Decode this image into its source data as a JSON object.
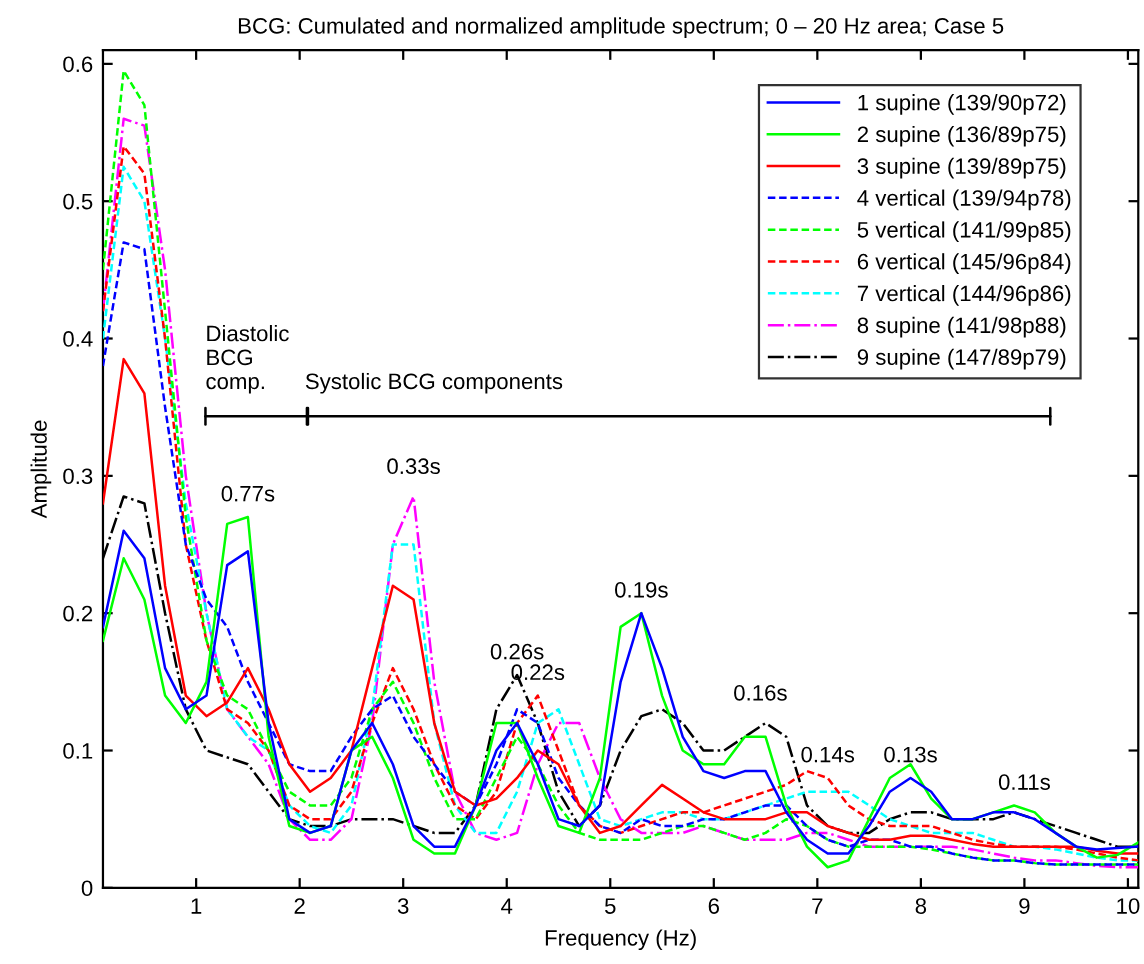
{
  "chart_data": {
    "type": "line",
    "title": "BCG: Cumulated and normalized amplitude spectrum; 0 – 20 Hz area; Case 5",
    "xlabel": "Frequency (Hz)",
    "ylabel": "Amplitude",
    "x": [
      0.1,
      0.3,
      0.5,
      0.7,
      0.9,
      1.1,
      1.3,
      1.5,
      1.7,
      1.9,
      2.1,
      2.3,
      2.5,
      2.7,
      2.9,
      3.1,
      3.3,
      3.5,
      3.7,
      3.9,
      4.1,
      4.3,
      4.5,
      4.7,
      4.9,
      5.1,
      5.3,
      5.5,
      5.7,
      5.9,
      6.1,
      6.3,
      6.5,
      6.7,
      6.9,
      7.1,
      7.3,
      7.5,
      7.7,
      7.9,
      8.1,
      8.3,
      8.5,
      8.7,
      8.9,
      9.1,
      9.3,
      9.5,
      9.7,
      9.9,
      10.1
    ],
    "xlim": [
      0.1,
      10.1
    ],
    "ylim": [
      0,
      0.61
    ],
    "xticks": [
      1,
      2,
      3,
      4,
      5,
      6,
      7,
      8,
      9,
      10
    ],
    "yticks": [
      0,
      0.1,
      0.2,
      0.3,
      0.4,
      0.5,
      0.6
    ],
    "grid": false,
    "legend": "top right",
    "marker": "none",
    "series": [
      {
        "name": "1 supine (139/90p72)",
        "color": "#0000ff",
        "line_style": "solid",
        "values": [
          0.19,
          0.26,
          0.24,
          0.16,
          0.13,
          0.14,
          0.235,
          0.245,
          0.12,
          0.05,
          0.04,
          0.045,
          0.1,
          0.12,
          0.09,
          0.045,
          0.03,
          0.03,
          0.06,
          0.1,
          0.12,
          0.09,
          0.05,
          0.045,
          0.06,
          0.15,
          0.2,
          0.16,
          0.11,
          0.085,
          0.08,
          0.085,
          0.085,
          0.055,
          0.035,
          0.025,
          0.025,
          0.045,
          0.07,
          0.08,
          0.07,
          0.05,
          0.05,
          0.055,
          0.055,
          0.05,
          0.04,
          0.03,
          0.028,
          0.029,
          0.03
        ]
      },
      {
        "name": "2 supine (136/89p75)",
        "color": "#00ff00",
        "line_style": "solid",
        "values": [
          0.18,
          0.24,
          0.21,
          0.14,
          0.12,
          0.15,
          0.265,
          0.27,
          0.11,
          0.045,
          0.04,
          0.045,
          0.1,
          0.11,
          0.08,
          0.035,
          0.025,
          0.025,
          0.06,
          0.12,
          0.12,
          0.08,
          0.045,
          0.04,
          0.08,
          0.19,
          0.2,
          0.14,
          0.1,
          0.09,
          0.09,
          0.11,
          0.11,
          0.06,
          0.03,
          0.015,
          0.02,
          0.05,
          0.08,
          0.09,
          0.065,
          0.05,
          0.05,
          0.055,
          0.06,
          0.055,
          0.04,
          0.03,
          0.022,
          0.024,
          0.033
        ]
      },
      {
        "name": "3 supine (139/89p75)",
        "color": "#ff0000",
        "line_style": "solid",
        "values": [
          0.28,
          0.385,
          0.36,
          0.22,
          0.14,
          0.125,
          0.135,
          0.16,
          0.13,
          0.09,
          0.07,
          0.08,
          0.1,
          0.16,
          0.22,
          0.21,
          0.12,
          0.07,
          0.06,
          0.065,
          0.08,
          0.1,
          0.09,
          0.06,
          0.04,
          0.045,
          0.06,
          0.075,
          0.065,
          0.055,
          0.05,
          0.05,
          0.05,
          0.055,
          0.055,
          0.045,
          0.04,
          0.035,
          0.035,
          0.038,
          0.038,
          0.035,
          0.032,
          0.03,
          0.03,
          0.03,
          0.03,
          0.03,
          0.027,
          0.025,
          0.025
        ]
      },
      {
        "name": "4 vertical (139/94p78)",
        "color": "#0000ff",
        "line_style": "dashed",
        "values": [
          0.38,
          0.47,
          0.465,
          0.35,
          0.25,
          0.21,
          0.19,
          0.15,
          0.12,
          0.09,
          0.085,
          0.085,
          0.11,
          0.13,
          0.14,
          0.11,
          0.09,
          0.07,
          0.06,
          0.09,
          0.13,
          0.12,
          0.08,
          0.06,
          0.045,
          0.04,
          0.05,
          0.045,
          0.045,
          0.05,
          0.05,
          0.055,
          0.06,
          0.06,
          0.045,
          0.035,
          0.03,
          0.035,
          0.035,
          0.03,
          0.03,
          0.025,
          0.022,
          0.02,
          0.02,
          0.018,
          0.017,
          0.017,
          0.017,
          0.017,
          0.017
        ]
      },
      {
        "name": "5 vertical (141/99p85)",
        "color": "#00ff00",
        "line_style": "dashed",
        "values": [
          0.45,
          0.595,
          0.57,
          0.42,
          0.27,
          0.18,
          0.14,
          0.13,
          0.1,
          0.07,
          0.06,
          0.06,
          0.08,
          0.13,
          0.15,
          0.12,
          0.08,
          0.05,
          0.05,
          0.08,
          0.11,
          0.09,
          0.06,
          0.04,
          0.035,
          0.035,
          0.035,
          0.04,
          0.045,
          0.045,
          0.04,
          0.035,
          0.04,
          0.05,
          0.045,
          0.035,
          0.03,
          0.03,
          0.03,
          0.03,
          0.028,
          0.025,
          0.022,
          0.02,
          0.02,
          0.018,
          0.017,
          0.017,
          0.017,
          0.017,
          0.017
        ]
      },
      {
        "name": "6 vertical (145/96p84)",
        "color": "#ff0000",
        "line_style": "dashed",
        "values": [
          0.42,
          0.54,
          0.52,
          0.4,
          0.25,
          0.18,
          0.13,
          0.12,
          0.1,
          0.06,
          0.05,
          0.05,
          0.07,
          0.12,
          0.16,
          0.13,
          0.09,
          0.06,
          0.05,
          0.07,
          0.12,
          0.14,
          0.1,
          0.06,
          0.045,
          0.04,
          0.045,
          0.05,
          0.055,
          0.055,
          0.06,
          0.065,
          0.07,
          0.075,
          0.085,
          0.08,
          0.06,
          0.05,
          0.045,
          0.045,
          0.045,
          0.04,
          0.035,
          0.032,
          0.03,
          0.03,
          0.03,
          0.028,
          0.025,
          0.022,
          0.02
        ]
      },
      {
        "name": "7 vertical (144/96p86)",
        "color": "#00ffff",
        "line_style": "dashed",
        "values": [
          0.4,
          0.525,
          0.5,
          0.4,
          0.28,
          0.2,
          0.13,
          0.11,
          0.1,
          0.06,
          0.045,
          0.04,
          0.06,
          0.13,
          0.25,
          0.25,
          0.12,
          0.06,
          0.04,
          0.04,
          0.07,
          0.12,
          0.13,
          0.09,
          0.05,
          0.045,
          0.05,
          0.055,
          0.055,
          0.05,
          0.05,
          0.055,
          0.06,
          0.065,
          0.07,
          0.07,
          0.07,
          0.06,
          0.05,
          0.045,
          0.04,
          0.04,
          0.04,
          0.035,
          0.03,
          0.03,
          0.028,
          0.025,
          0.022,
          0.02,
          0.02
        ]
      },
      {
        "name": "8 supine (141/98p88)",
        "color": "#ff00ff",
        "line_style": "dashdot",
        "values": [
          0.42,
          0.56,
          0.555,
          0.45,
          0.3,
          0.2,
          0.13,
          0.11,
          0.09,
          0.05,
          0.035,
          0.035,
          0.05,
          0.12,
          0.25,
          0.285,
          0.15,
          0.07,
          0.04,
          0.035,
          0.04,
          0.09,
          0.12,
          0.12,
          0.08,
          0.05,
          0.04,
          0.04,
          0.04,
          0.045,
          0.04,
          0.035,
          0.035,
          0.035,
          0.04,
          0.04,
          0.035,
          0.03,
          0.03,
          0.03,
          0.03,
          0.03,
          0.028,
          0.025,
          0.022,
          0.02,
          0.02,
          0.018,
          0.016,
          0.015,
          0.015
        ]
      },
      {
        "name": "9 supine (147/89p79)",
        "color": "#000000",
        "line_style": "dashdot",
        "values": [
          0.24,
          0.285,
          0.28,
          0.2,
          0.13,
          0.1,
          0.095,
          0.09,
          0.07,
          0.05,
          0.045,
          0.045,
          0.05,
          0.05,
          0.05,
          0.045,
          0.04,
          0.04,
          0.06,
          0.13,
          0.155,
          0.12,
          0.07,
          0.045,
          0.06,
          0.1,
          0.125,
          0.13,
          0.12,
          0.1,
          0.1,
          0.11,
          0.12,
          0.11,
          0.06,
          0.045,
          0.04,
          0.04,
          0.05,
          0.055,
          0.055,
          0.05,
          0.05,
          0.05,
          0.055,
          0.05,
          0.045,
          0.04,
          0.035,
          0.03,
          0.03
        ]
      }
    ],
    "annotations": [
      "Diastolic\nBCG\ncomp.",
      "Systolic BCG components",
      {
        "text": "0.77s",
        "x": 1.5,
        "y": 0.27
      },
      {
        "text": "0.33s",
        "x": 3.1,
        "y": 0.29
      },
      {
        "text": "0.26s",
        "x": 4.1,
        "y": 0.155
      },
      {
        "text": "0.22s",
        "x": 4.3,
        "y": 0.14
      },
      {
        "text": "0.19s",
        "x": 5.3,
        "y": 0.2
      },
      {
        "text": "0.16s",
        "x": 6.45,
        "y": 0.125
      },
      {
        "text": "0.14s",
        "x": 7.1,
        "y": 0.08
      },
      {
        "text": "0.13s",
        "x": 7.9,
        "y": 0.08
      },
      {
        "text": "0.11s",
        "x": 9.0,
        "y": 0.06
      }
    ]
  }
}
